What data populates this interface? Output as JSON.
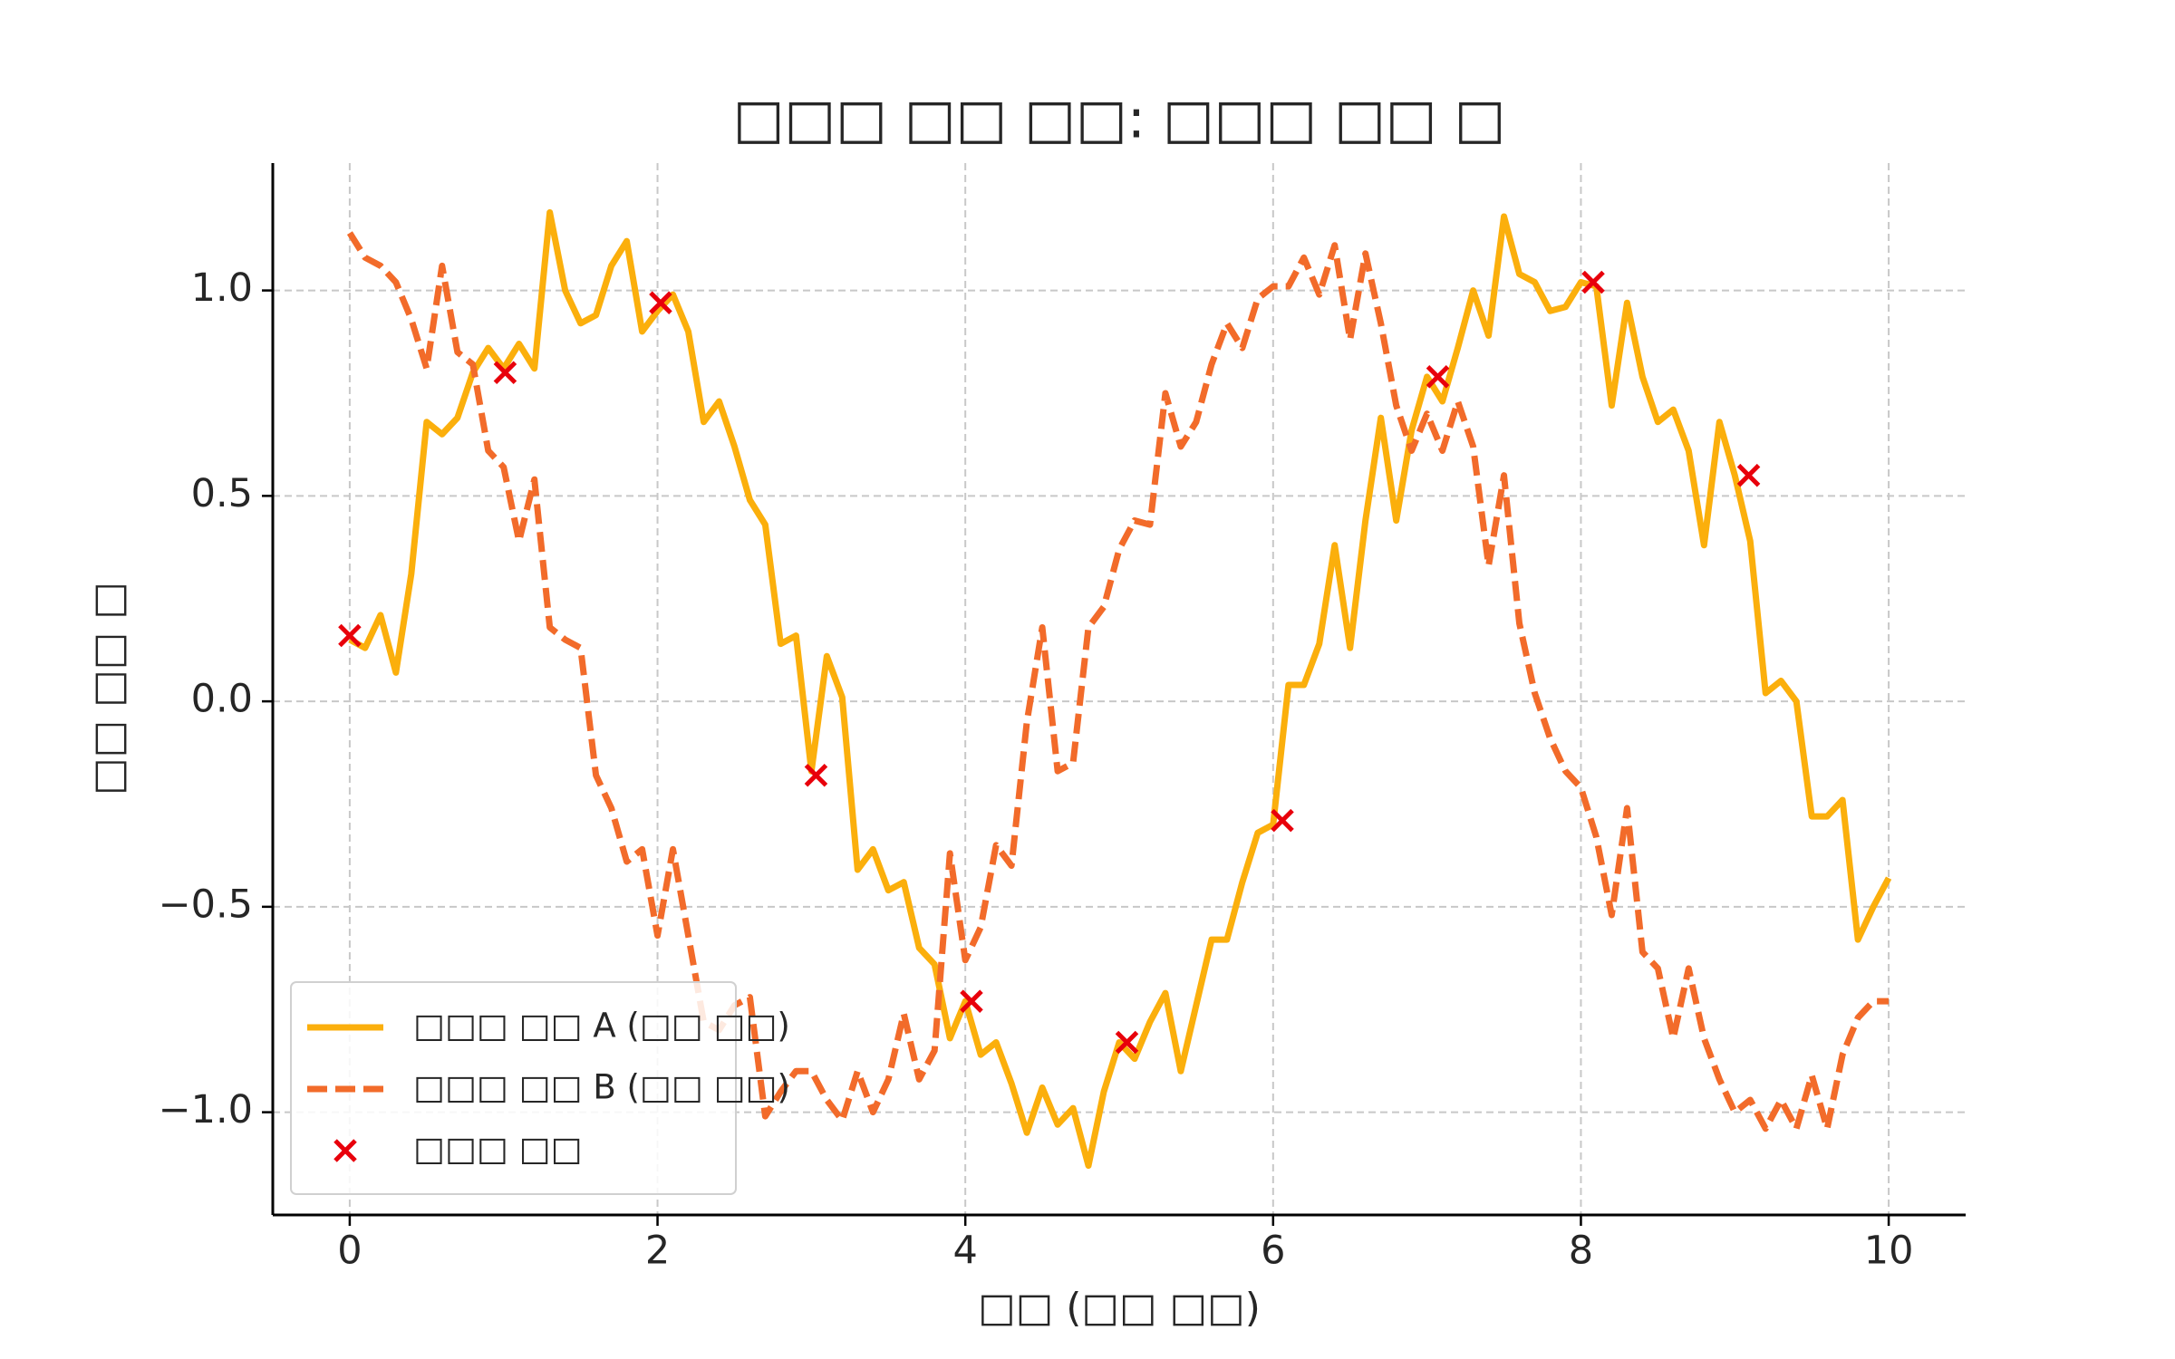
{
  "chart_data": {
    "type": "line",
    "title": "□□□ □□ □□: □□□ □□ □",
    "x_label": "□□ (□□ □□)",
    "y_label": "□□ □□ □",
    "x": [
      0,
      0.1,
      0.2,
      0.3,
      0.4,
      0.5,
      0.6,
      0.7,
      0.8,
      0.9,
      1,
      1.1,
      1.2,
      1.3,
      1.4,
      1.5,
      1.6,
      1.7,
      1.8,
      1.9,
      2,
      2.1,
      2.2,
      2.3,
      2.4,
      2.5,
      2.6,
      2.7,
      2.8,
      2.9,
      3,
      3.1,
      3.2,
      3.3,
      3.4,
      3.5,
      3.6,
      3.7,
      3.8,
      3.9,
      4,
      4.1,
      4.2,
      4.3,
      4.4,
      4.5,
      4.6,
      4.7,
      4.8,
      4.9,
      5,
      5.1,
      5.2,
      5.3,
      5.4,
      5.5,
      5.6,
      5.7,
      5.8,
      5.9,
      6,
      6.1,
      6.2,
      6.3,
      6.4,
      6.5,
      6.6,
      6.7,
      6.8,
      6.9,
      7,
      7.1,
      7.2,
      7.3,
      7.4,
      7.5,
      7.6,
      7.7,
      7.8,
      7.9,
      8,
      8.1,
      8.2,
      8.3,
      8.4,
      8.5,
      8.6,
      8.7,
      8.8,
      8.9,
      9,
      9.1,
      9.2,
      9.3,
      9.4,
      9.5,
      9.6,
      9.7,
      9.8,
      9.9,
      10
    ],
    "series": [
      {
        "name": "□□□ □□ A (□□ □□)",
        "color": "#fbaf0c",
        "style": "solid",
        "values": [
          0.15,
          0.13,
          0.21,
          0.07,
          0.31,
          0.68,
          0.65,
          0.69,
          0.8,
          0.86,
          0.81,
          0.87,
          0.81,
          1.19,
          1.0,
          0.92,
          0.94,
          1.06,
          1.12,
          0.9,
          0.95,
          0.99,
          0.9,
          0.68,
          0.73,
          0.62,
          0.49,
          0.43,
          0.14,
          0.16,
          -0.17,
          0.11,
          0.01,
          -0.41,
          -0.36,
          -0.46,
          -0.44,
          -0.6,
          -0.64,
          -0.82,
          -0.73,
          -0.86,
          -0.83,
          -0.93,
          -1.05,
          -0.94,
          -1.03,
          -0.99,
          -1.13,
          -0.95,
          -0.83,
          -0.87,
          -0.78,
          -0.71,
          -0.9,
          -0.74,
          -0.58,
          -0.58,
          -0.44,
          -0.32,
          -0.3,
          0.04,
          0.04,
          0.14,
          0.38,
          0.13,
          0.44,
          0.69,
          0.44,
          0.66,
          0.79,
          0.73,
          0.86,
          1.0,
          0.89,
          1.18,
          1.04,
          1.02,
          0.95,
          0.96,
          1.02,
          1.01,
          0.72,
          0.97,
          0.79,
          0.68,
          0.71,
          0.61,
          0.38,
          0.68,
          0.55,
          0.39,
          0.02,
          0.05,
          0.0,
          -0.28,
          -0.28,
          -0.24,
          -0.58,
          -0.5,
          -0.43
        ]
      },
      {
        "name": "□□□ □□ B (□□ □□)",
        "color": "#f26b2a",
        "style": "dashed",
        "values": [
          1.14,
          1.08,
          1.06,
          1.02,
          0.93,
          0.81,
          1.06,
          0.85,
          0.82,
          0.61,
          0.57,
          0.39,
          0.54,
          0.18,
          0.15,
          0.13,
          -0.18,
          -0.26,
          -0.39,
          -0.36,
          -0.57,
          -0.36,
          -0.57,
          -0.78,
          -0.8,
          -0.74,
          -0.72,
          -1.01,
          -0.95,
          -0.9,
          -0.9,
          -0.97,
          -1.02,
          -0.9,
          -1.0,
          -0.92,
          -0.76,
          -0.92,
          -0.85,
          -0.37,
          -0.63,
          -0.55,
          -0.35,
          -0.4,
          -0.05,
          0.18,
          -0.17,
          -0.15,
          0.18,
          0.23,
          0.37,
          0.44,
          0.43,
          0.75,
          0.62,
          0.68,
          0.82,
          0.92,
          0.86,
          0.98,
          1.01,
          1.01,
          1.08,
          0.99,
          1.11,
          0.88,
          1.09,
          0.92,
          0.72,
          0.61,
          0.7,
          0.61,
          0.73,
          0.62,
          0.33,
          0.55,
          0.19,
          0.02,
          -0.09,
          -0.17,
          -0.21,
          -0.33,
          -0.52,
          -0.26,
          -0.61,
          -0.65,
          -0.82,
          -0.65,
          -0.82,
          -0.92,
          -1.0,
          -0.97,
          -1.04,
          -0.97,
          -1.04,
          -0.91,
          -1.04,
          -0.86,
          -0.77,
          -0.73,
          -0.73
        ]
      },
      {
        "name": "□□□ □□",
        "color": "#e8000b",
        "style": "markers",
        "x": [
          0,
          1.01,
          2.02,
          3.03,
          4.04,
          5.05,
          6.06,
          7.07,
          8.08,
          9.09
        ],
        "values": [
          0.16,
          0.8,
          0.97,
          -0.18,
          -0.73,
          -0.83,
          -0.29,
          0.79,
          1.02,
          0.55
        ]
      }
    ],
    "xlim": [
      -0.5,
      10.5
    ],
    "ylim": [
      -1.25,
      1.31
    ],
    "xticks": [
      0,
      2,
      4,
      6,
      8,
      10
    ],
    "yticks": [
      {
        "value": -1,
        "label": "−1.0"
      },
      {
        "value": -0.5,
        "label": "−0.5"
      },
      {
        "value": 0,
        "label": "0.0"
      },
      {
        "value": 0.5,
        "label": "0.5"
      },
      {
        "value": 1,
        "label": "1.0"
      }
    ],
    "grid": true,
    "legend": "lower left"
  }
}
